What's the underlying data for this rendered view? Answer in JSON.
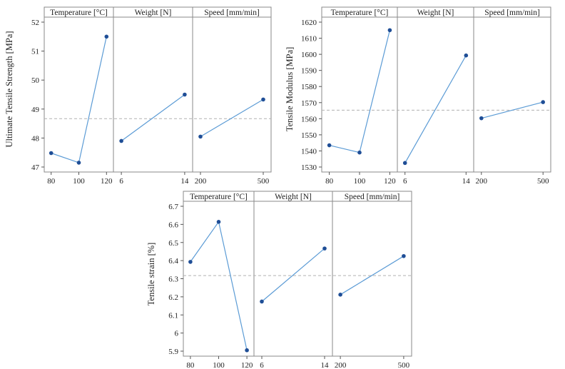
{
  "colors": {
    "line": "#5b9bd5",
    "point": "#1f4e96",
    "frame": "#8a8a8a",
    "reference_line": "#b0b0b0"
  },
  "chart_data": [
    {
      "type": "line",
      "chart_kind": "main effects plot",
      "ylabel": "Ultimate Tensile Strength [MPa]",
      "ylim": [
        47,
        52
      ],
      "yticks": [
        47,
        48,
        49,
        50,
        51,
        52
      ],
      "reference_line": 48.67,
      "panels": [
        {
          "title": "Temperature [°C]",
          "categories": [
            "80",
            "100",
            "120"
          ],
          "values": [
            47.48,
            47.15,
            51.5
          ]
        },
        {
          "title": "Weight [N]",
          "categories": [
            "6",
            "14"
          ],
          "values": [
            47.9,
            49.5
          ]
        },
        {
          "title": "Speed [mm/min]",
          "categories": [
            "200",
            "500"
          ],
          "values": [
            48.05,
            49.33
          ]
        }
      ]
    },
    {
      "type": "line",
      "chart_kind": "main effects plot",
      "ylabel": "Tensile Modulus [MPa]",
      "ylim": [
        1530,
        1620
      ],
      "yticks": [
        1530,
        1540,
        1550,
        1560,
        1570,
        1580,
        1590,
        1600,
        1610,
        1620
      ],
      "reference_line": 1565.3,
      "panels": [
        {
          "title": "Temperature [°C]",
          "categories": [
            "80",
            "100",
            "120"
          ],
          "values": [
            1543.5,
            1539,
            1615
          ]
        },
        {
          "title": "Weight [N]",
          "categories": [
            "6",
            "14"
          ],
          "values": [
            1532.5,
            1599.3
          ]
        },
        {
          "title": "Speed [mm/min]",
          "categories": [
            "200",
            "500"
          ],
          "values": [
            1560.3,
            1570.3
          ]
        }
      ]
    },
    {
      "type": "line",
      "chart_kind": "main effects plot",
      "ylabel": "Tensile strain [%]",
      "ylim": [
        5.9,
        6.7
      ],
      "yticks": [
        5.9,
        6.0,
        6.1,
        6.2,
        6.3,
        6.4,
        6.5,
        6.6,
        6.7
      ],
      "reference_line": 6.317,
      "panels": [
        {
          "title": "Temperature [°C]",
          "categories": [
            "80",
            "100",
            "120"
          ],
          "values": [
            6.393,
            6.614,
            5.905
          ]
        },
        {
          "title": "Weight [N]",
          "categories": [
            "6",
            "14"
          ],
          "values": [
            6.174,
            6.467
          ]
        },
        {
          "title": "Speed [mm/min]",
          "categories": [
            "200",
            "500"
          ],
          "values": [
            6.212,
            6.425
          ]
        }
      ]
    }
  ]
}
